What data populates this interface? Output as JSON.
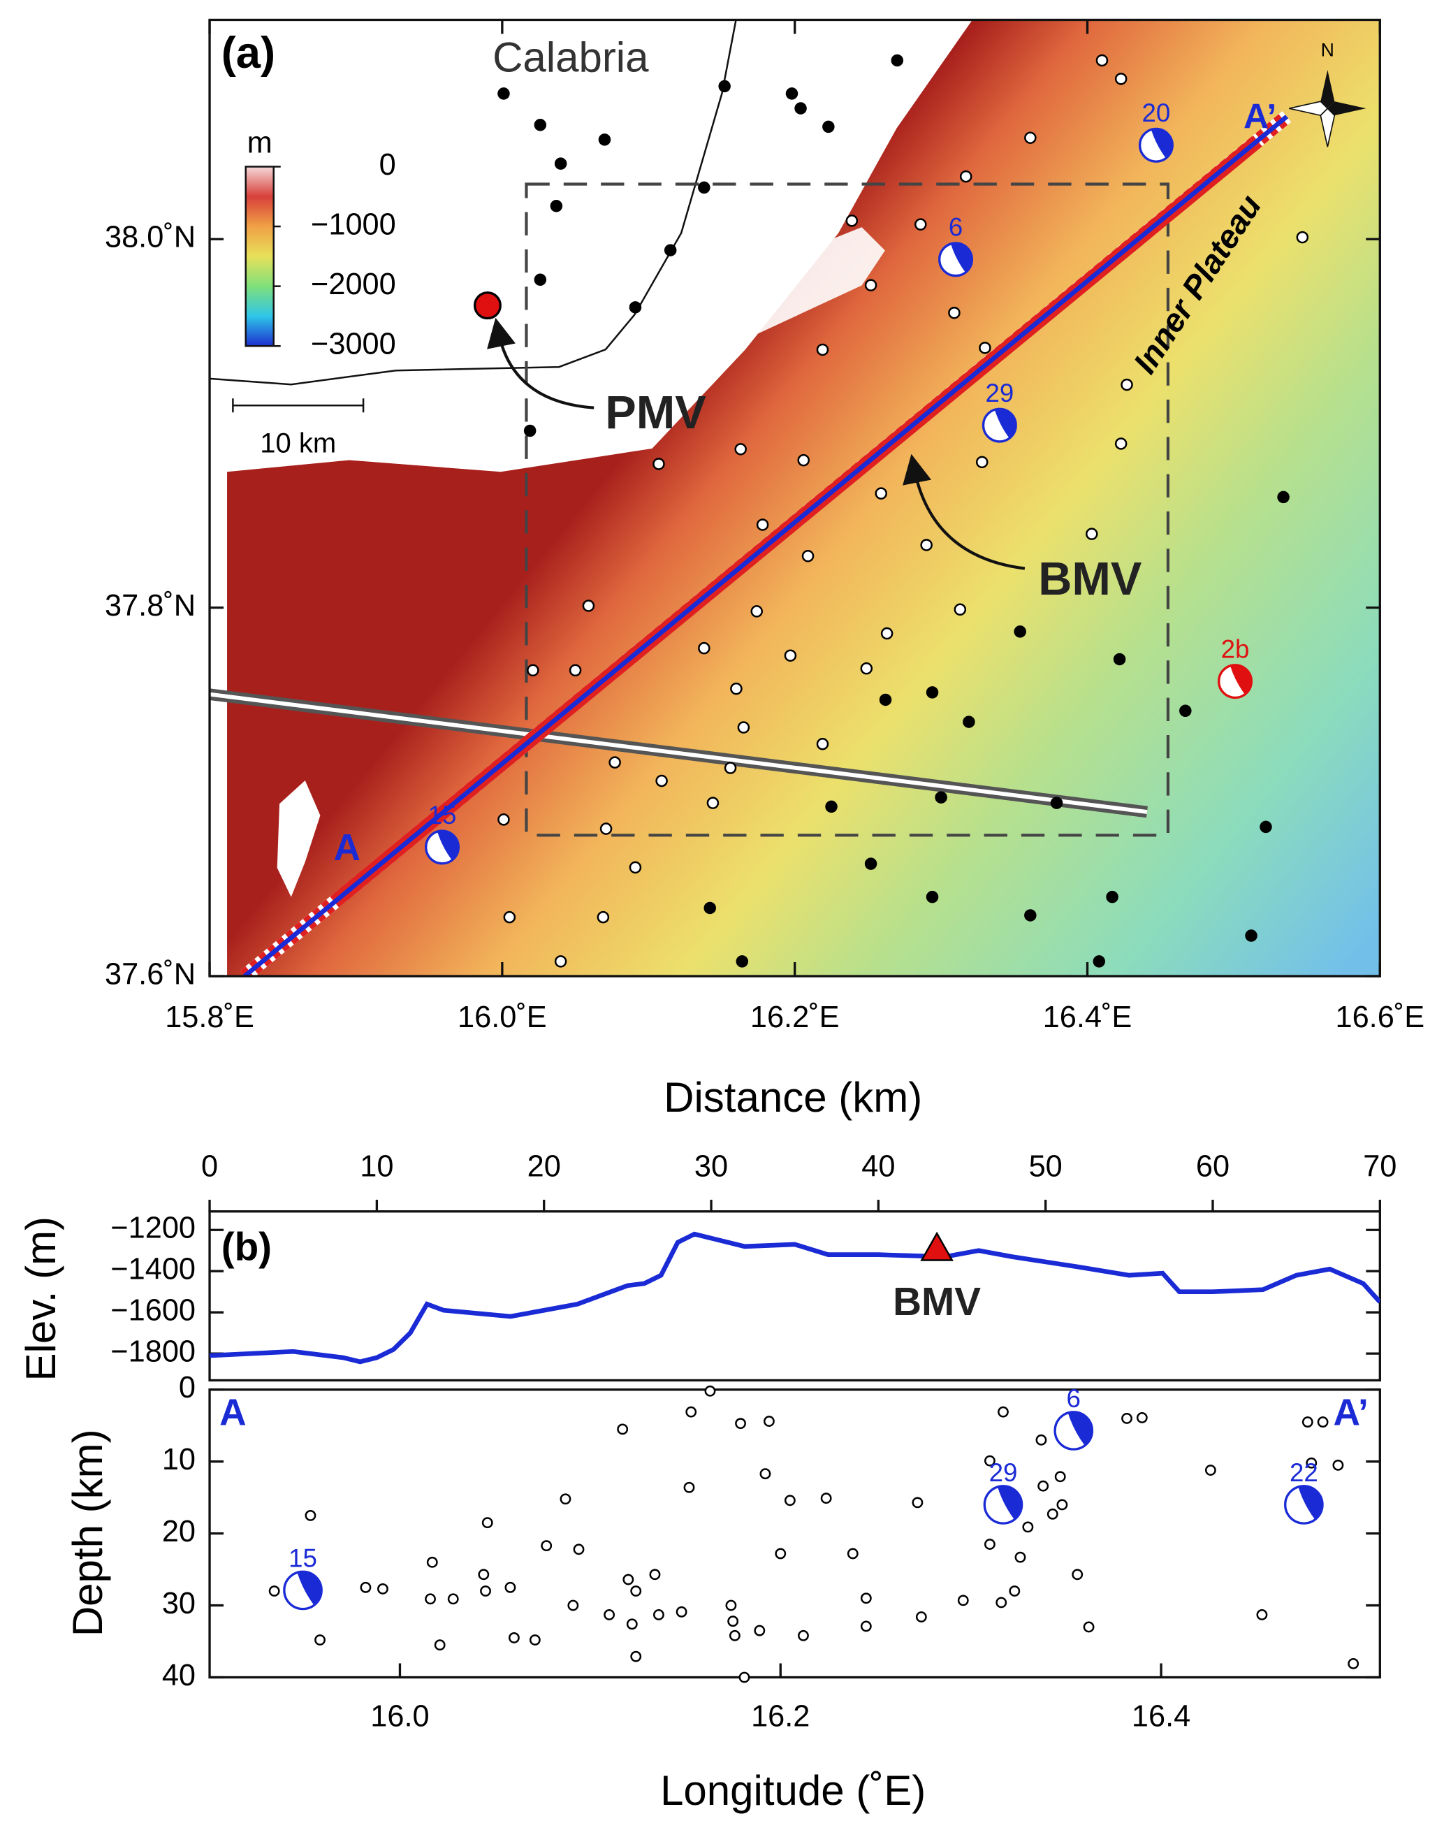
{
  "chart_data": [
    {
      "type": "map",
      "title": "(a)",
      "region_label": "Calabria",
      "feature_label": "Inner Plateau",
      "profile_start": "A",
      "profile_end": "A’",
      "scale_bar": "10 km",
      "north": "N",
      "center_label": "BMV",
      "xlim": [
        15.8,
        16.6
      ],
      "ylim": [
        37.6,
        38.119
      ],
      "xticks": [
        {
          "value": 15.8,
          "label": "15.8˚E"
        },
        {
          "value": 16.0,
          "label": "16.0˚E"
        },
        {
          "value": 16.2,
          "label": "16.2˚E"
        },
        {
          "value": 16.4,
          "label": "16.4˚E"
        },
        {
          "value": 16.6,
          "label": "16.6˚E"
        }
      ],
      "yticks": [
        {
          "value": 37.6,
          "label": "37.6˚N"
        },
        {
          "value": 37.8,
          "label": "37.8˚N"
        },
        {
          "value": 38.0,
          "label": "38.0˚N"
        }
      ],
      "colorbar": {
        "title": "m",
        "lim": [
          -3000,
          0
        ],
        "ticks": [
          0,
          {
            "value": -1000,
            "label": "−1000"
          },
          {
            "value": -2000,
            "label": "−2000"
          },
          {
            "value": -3000,
            "label": "−3000"
          }
        ],
        "colors": [
          "#1d2fd0",
          "#2fc6e8",
          "#7fe07a",
          "#e8e05a",
          "#f0a046",
          "#d8403a",
          "#f4d8d8"
        ]
      },
      "series": [
        {
          "color": "#000000",
          "x": [
            16.001,
            16.026,
            16.04,
            16.037,
            16.07,
            16.091,
            16.115,
            16.138,
            16.152,
            16.026,
            16.198,
            16.204,
            16.223,
            16.27,
            16.019,
            16.262,
            16.294,
            16.319,
            16.3,
            16.354,
            16.422,
            16.467,
            16.379,
            16.522,
            16.534,
            16.225,
            16.252,
            16.294,
            16.361,
            16.417,
            16.142,
            16.164,
            16.408,
            16.512
          ],
          "y": [
            38.079,
            38.062,
            38.041,
            38.018,
            38.054,
            37.963,
            37.994,
            38.028,
            38.083,
            37.978,
            38.079,
            38.071,
            38.061,
            38.097,
            37.896,
            37.75,
            37.754,
            37.738,
            37.697,
            37.787,
            37.772,
            37.744,
            37.694,
            37.681,
            37.86,
            37.692,
            37.661,
            37.643,
            37.633,
            37.643,
            37.637,
            37.608,
            37.608,
            37.622
          ]
        },
        {
          "color": "#ffffff",
          "x": [
            16.41,
            16.423,
            16.361,
            16.317,
            16.286,
            16.252,
            16.239,
            16.309,
            16.33,
            16.427,
            16.423,
            16.328,
            16.259,
            16.29,
            16.313,
            16.403,
            16.219,
            16.163,
            16.107,
            16.206,
            16.178,
            16.209,
            16.174,
            16.138,
            16.263,
            16.249,
            16.197,
            16.16,
            16.165,
            16.219,
            16.156,
            16.077,
            16.059,
            16.05,
            16.021,
            16.109,
            16.071,
            16.144,
            16.001,
            16.005,
            16.091,
            16.069,
            16.04,
            16.547
          ],
          "y": [
            38.097,
            38.087,
            38.055,
            38.034,
            38.008,
            37.975,
            38.01,
            37.96,
            37.941,
            37.921,
            37.889,
            37.879,
            37.862,
            37.834,
            37.799,
            37.84,
            37.94,
            37.886,
            37.878,
            37.88,
            37.845,
            37.828,
            37.798,
            37.778,
            37.786,
            37.767,
            37.774,
            37.756,
            37.735,
            37.726,
            37.713,
            37.716,
            37.801,
            37.766,
            37.766,
            37.706,
            37.68,
            37.694,
            37.685,
            37.632,
            37.659,
            37.632,
            37.608,
            38.001
          ]
        }
      ],
      "events": [
        {
          "label": "20",
          "x": 16.447,
          "y": 38.051,
          "color": "#1a2bd6"
        },
        {
          "label": "6",
          "x": 16.31,
          "y": 37.989,
          "color": "#1a2bd6"
        },
        {
          "label": "29",
          "x": 16.34,
          "y": 37.899,
          "color": "#1a2bd6"
        },
        {
          "label": "15",
          "x": 15.959,
          "y": 37.67,
          "color": "#1a2bd6"
        },
        {
          "label": "2b",
          "x": 16.501,
          "y": 37.76,
          "color": "#e01010"
        }
      ],
      "volcanoes": [
        {
          "name": "PMV",
          "x": 15.99,
          "y": 37.964,
          "color": "#e01010"
        }
      ]
    },
    {
      "type": "line",
      "title": "(b)",
      "xlabel": "Distance (km)",
      "ylabel": "Elev. (m)",
      "color": "#1a2bd6",
      "xlim": [
        0,
        70
      ],
      "xticks": [
        0,
        10,
        20,
        30,
        40,
        50,
        60,
        70
      ],
      "ylim": [
        -1930,
        -1110
      ],
      "yticks": [
        {
          "value": -1200,
          "label": "−1200"
        },
        {
          "value": -1400,
          "label": "−1400"
        },
        {
          "value": -1600,
          "label": "−1600"
        },
        {
          "value": -1800,
          "label": "−1800"
        }
      ],
      "x": [
        0,
        5,
        8,
        9,
        10,
        11,
        12,
        13,
        14,
        18,
        22,
        25,
        26,
        27,
        28,
        29,
        30,
        32,
        35,
        37,
        40,
        44,
        46,
        48,
        52,
        55,
        57,
        58,
        60,
        63,
        65,
        67,
        69,
        70
      ],
      "values": [
        -1810,
        -1790,
        -1820,
        -1840,
        -1820,
        -1780,
        -1700,
        -1560,
        -1590,
        -1620,
        -1560,
        -1470,
        -1460,
        -1420,
        -1260,
        -1220,
        -1240,
        -1280,
        -1270,
        -1320,
        -1320,
        -1330,
        -1300,
        -1330,
        -1380,
        -1420,
        -1410,
        -1500,
        -1500,
        -1490,
        -1420,
        -1390,
        -1460,
        -1550
      ],
      "marker": {
        "label": "BMV",
        "x": 43.5,
        "y": -1290,
        "color": "#e01010"
      }
    },
    {
      "type": "scatter",
      "xlabel": "Longitude (˚E)",
      "ylabel": "Depth (km)",
      "profile_start": "A",
      "profile_end": "A’",
      "xlim": [
        15.9,
        16.515
      ],
      "xticks": [
        {
          "value": 16,
          "label": "16.0"
        },
        16.2,
        16.4
      ],
      "ylim": [
        0,
        40
      ],
      "inverted": true,
      "yticks": [
        0,
        10,
        20,
        30,
        40
      ],
      "x": [
        15.934,
        15.953,
        15.958,
        15.982,
        15.991,
        16.017,
        16.016,
        16.021,
        16.028,
        16.044,
        16.045,
        16.046,
        16.058,
        16.06,
        16.071,
        16.077,
        16.087,
        16.091,
        16.094,
        16.11,
        16.117,
        16.12,
        16.122,
        16.124,
        16.124,
        16.134,
        16.136,
        16.148,
        16.152,
        16.153,
        16.163,
        16.174,
        16.175,
        16.176,
        16.179,
        16.181,
        16.189,
        16.192,
        16.194,
        16.2,
        16.205,
        16.212,
        16.224,
        16.238,
        16.245,
        16.245,
        16.272,
        16.274,
        16.296,
        16.31,
        16.31,
        16.317,
        16.316,
        16.323,
        16.326,
        16.33,
        16.337,
        16.338,
        16.343,
        16.347,
        16.348,
        16.356,
        16.362,
        16.382,
        16.39,
        16.426,
        16.453,
        16.477,
        16.485,
        16.479,
        16.493,
        16.501
      ],
      "values": [
        28.0,
        17.5,
        34.8,
        27.5,
        27.7,
        24.0,
        29.1,
        35.5,
        29.1,
        25.7,
        28.0,
        18.5,
        27.5,
        34.5,
        34.8,
        21.7,
        15.2,
        30.0,
        22.2,
        31.3,
        5.5,
        26.4,
        32.6,
        28.0,
        37.1,
        25.7,
        31.3,
        30.9,
        13.6,
        3.1,
        0.2,
        30.0,
        32.2,
        34.2,
        4.7,
        40,
        33.5,
        11.7,
        4.4,
        22.8,
        15.4,
        34.2,
        15.1,
        22.8,
        29.0,
        32.9,
        15.7,
        31.6,
        29.3,
        9.9,
        21.5,
        3.1,
        29.6,
        28.0,
        23.3,
        19.1,
        7.0,
        13.4,
        17.3,
        12.1,
        16.0,
        25.7,
        33.0,
        4.0,
        3.9,
        11.2,
        31.3,
        4.5,
        4.5,
        10.2,
        10.5,
        38.1
      ],
      "events": [
        {
          "label": "15",
          "x": 15.949,
          "y": 27.9,
          "color": "#1a2bd6"
        },
        {
          "label": "29",
          "x": 16.317,
          "y": 16.0,
          "color": "#1a2bd6"
        },
        {
          "label": "6",
          "x": 16.354,
          "y": 5.7,
          "color": "#1a2bd6"
        },
        {
          "label": "22",
          "x": 16.475,
          "y": 16.0,
          "color": "#1a2bd6"
        }
      ]
    }
  ]
}
